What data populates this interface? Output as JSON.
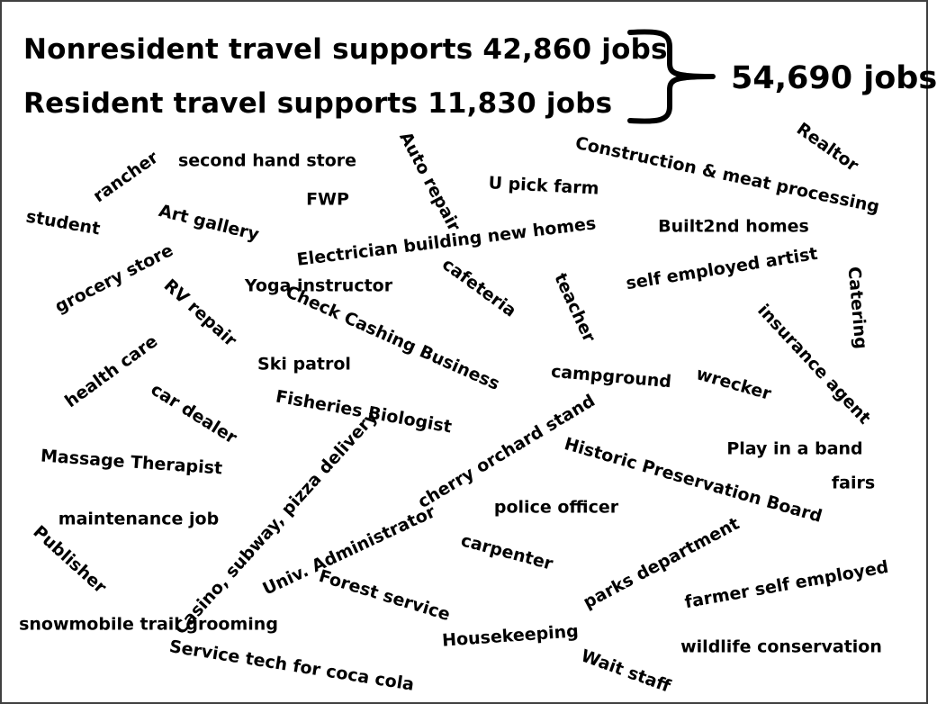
{
  "header": {
    "nonresident": "Nonresident travel supports 42,860 jobs",
    "resident": "Resident travel supports 11,830 jobs",
    "total": "54,690 jobs"
  },
  "jobs": [
    "rancher",
    "second hand store",
    "Auto repair",
    "Construction & meat processing",
    "Realtor",
    "student",
    "Art gallery",
    "FWP",
    "U pick farm",
    "Built2nd homes",
    "Electrician building new homes",
    "grocery store",
    "self employed artist",
    "RV repair",
    "Yoga instructor",
    "cafeteria",
    "teacher",
    "Catering",
    "Check Cashing Business",
    "insurance agent",
    "health care",
    "Ski patrol",
    "campground",
    "wrecker",
    "car dealer",
    "Fisheries Biologist",
    "Massage Therapist",
    "Play in a band",
    "Casino, subway, pizza delivery",
    "cherry orchard stand",
    "Historic Preservation Board",
    "fairs",
    "maintenance job",
    "police officer",
    "Publisher",
    "Univ. Administrator",
    "carpenter",
    "parks department",
    "farmer self employed",
    "Forest service",
    "snowmobile trail grooming",
    "Housekeeping",
    "wildlife conservation",
    "Service tech for coca cola",
    "Wait staff"
  ]
}
